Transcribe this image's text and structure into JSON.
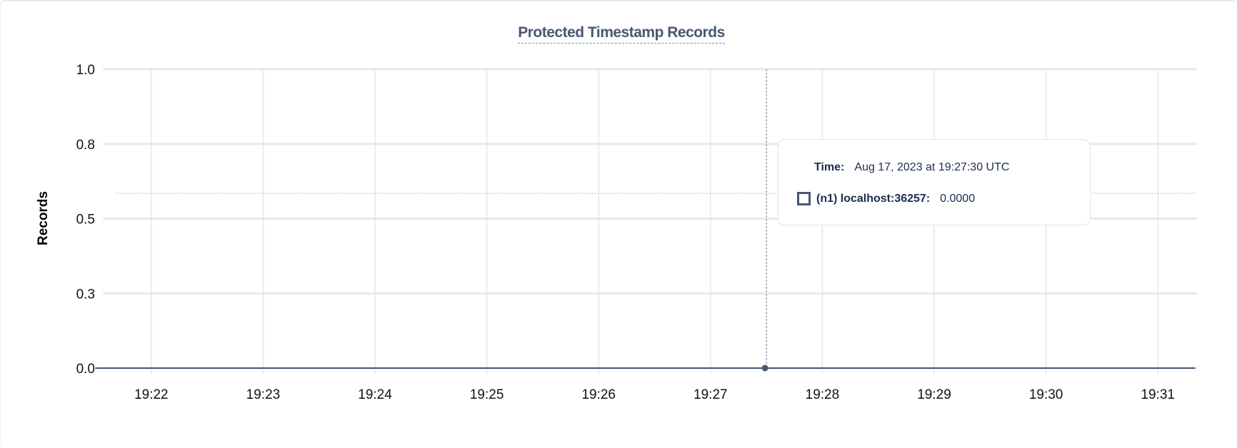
{
  "chart_data": {
    "type": "line",
    "title": "Protected Timestamp Records",
    "ylabel": "Records",
    "xlabel": "",
    "ylim": [
      0,
      1.0
    ],
    "y_ticks": [
      0.0,
      0.25,
      0.5,
      0.75,
      1.0
    ],
    "y_tick_labels": [
      "0.0",
      "0.3",
      "0.5",
      "0.8",
      "1.0"
    ],
    "x_tick_labels": [
      "19:22",
      "19:23",
      "19:24",
      "19:25",
      "19:26",
      "19:27",
      "19:28",
      "19:29",
      "19:30",
      "19:31"
    ],
    "xlim": [
      "19:21:34",
      "19:31:21"
    ],
    "grid": true,
    "series": [
      {
        "name": "(n1) localhost:36257",
        "color": "#475872",
        "x": [
          "19:21:30",
          "19:31:20"
        ],
        "y": [
          0,
          0
        ]
      }
    ],
    "hover": {
      "x": "19:27:30",
      "y": 0
    }
  },
  "tooltip": {
    "time_label": "Time:",
    "time_value": "Aug 17, 2023 at 19:27:30 UTC",
    "series_label": "(n1) localhost:36257:",
    "series_value": "0.0000"
  }
}
